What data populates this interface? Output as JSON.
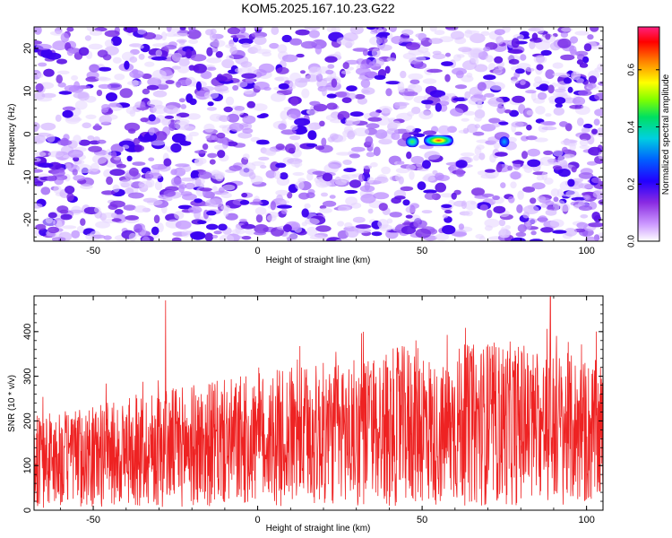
{
  "title": "KOM5.2025.167.10.23.G22",
  "chart_data": [
    {
      "type": "heatmap",
      "xlabel": "Height of straight line (km)",
      "ylabel": "Frequency (Hz)",
      "xlim": [
        -68,
        105
      ],
      "ylim": [
        -25,
        25
      ],
      "x_ticks": [
        -50,
        0,
        50,
        100
      ],
      "y_ticks": [
        -20,
        -10,
        0,
        10,
        20
      ],
      "colorbar": {
        "label": "Normalized spectral amplitude",
        "range": [
          0.0,
          0.75
        ],
        "ticks": [
          0.0,
          0.2,
          0.4,
          0.6
        ],
        "colormap": [
          "#ffffff",
          "#cc99ff",
          "#8a2be2",
          "#2200ff",
          "#0055ff",
          "#00d0e0",
          "#00e060",
          "#80ff00",
          "#ffff00",
          "#ff8000",
          "#ff0000",
          "#ff2080"
        ]
      },
      "background": "speckled low-amplitude noise (0.0-0.3) across the whole plane, with a vertical low-amplitude gap near 63-66 km",
      "features": [
        {
          "x": 55,
          "y": -1.5,
          "amplitude": 0.75,
          "width_km": 9
        },
        {
          "x": 47,
          "y": -1.8,
          "amplitude": 0.4,
          "width_km": 4
        },
        {
          "x": 75,
          "y": -1.8,
          "amplitude": 0.25,
          "width_km": 3
        }
      ]
    },
    {
      "type": "line",
      "xlabel": "Height of straight line (km)",
      "ylabel": "SNR (10 * v/v)",
      "xlim": [
        -68,
        105
      ],
      "ylim": [
        0,
        480
      ],
      "x_ticks": [
        -50,
        0,
        50,
        100
      ],
      "y_ticks": [
        0,
        100,
        200,
        300,
        400
      ],
      "series_color": "#ee2222",
      "envelope_mean": [
        {
          "x": -68,
          "y": 110
        },
        {
          "x": -50,
          "y": 120
        },
        {
          "x": -30,
          "y": 140
        },
        {
          "x": -10,
          "y": 150
        },
        {
          "x": 10,
          "y": 165
        },
        {
          "x": 30,
          "y": 175
        },
        {
          "x": 45,
          "y": 190
        },
        {
          "x": 50,
          "y": 200
        },
        {
          "x": 55,
          "y": 160
        },
        {
          "x": 60,
          "y": 190
        },
        {
          "x": 75,
          "y": 195
        },
        {
          "x": 90,
          "y": 185
        },
        {
          "x": 105,
          "y": 170
        }
      ],
      "notable_peaks": [
        {
          "x": -28,
          "y": 470
        },
        {
          "x": 89,
          "y": 478
        },
        {
          "x": 103,
          "y": 400
        }
      ]
    }
  ]
}
